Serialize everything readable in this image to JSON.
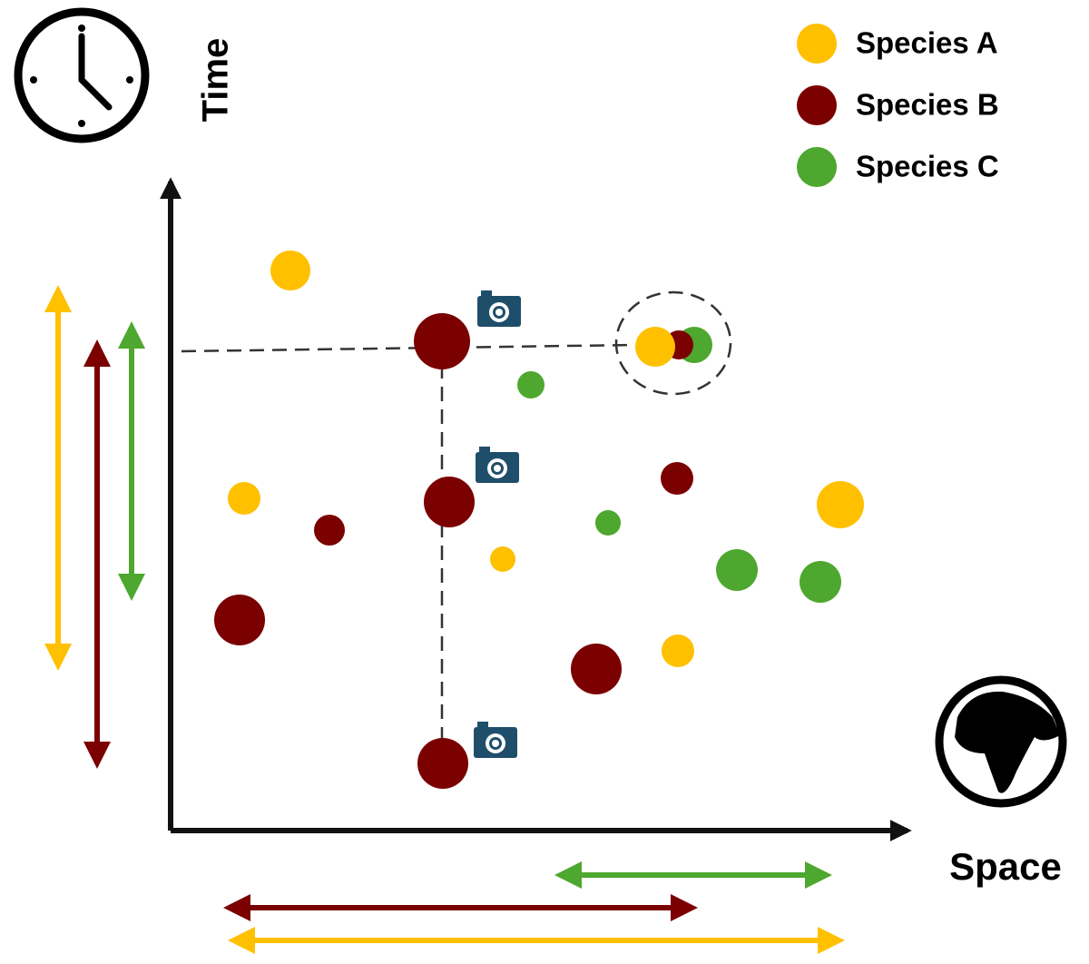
{
  "axes": {
    "y_label": "Time",
    "x_label": "Space"
  },
  "legend": [
    {
      "name": "Species A",
      "color": "#ffc000"
    },
    {
      "name": "Species B",
      "color": "#7b0000"
    },
    {
      "name": "Species C",
      "color": "#4ea72e"
    }
  ]
}
